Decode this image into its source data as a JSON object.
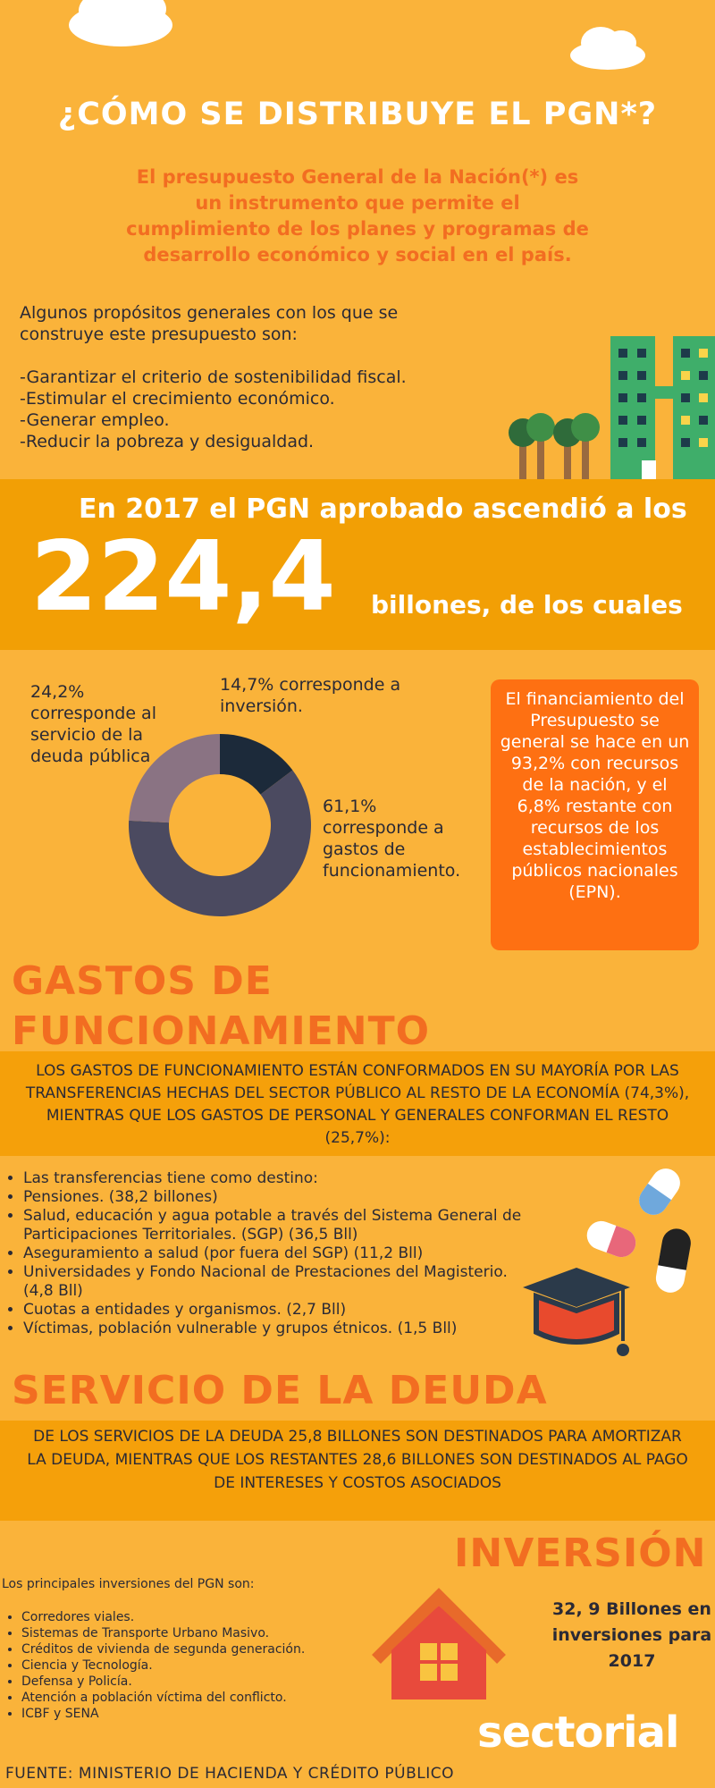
{
  "header": {
    "title": "¿CÓMO SE DISTRIBUYE EL PGN*?",
    "intro": "El presupuesto General de la Nación(*) es un instrumento que permite el cumplimiento de los planes y programas de desarrollo económico y social en el país.",
    "purposes_lead": "Algunos propósitos generales con los que se construye este presupuesto son:",
    "purposes": [
      "-Garantizar el criterio de sostenibilidad fiscal.",
      "-Estimular el crecimiento económico.",
      "-Generar empleo.",
      "-Reducir la pobreza y desigualdad."
    ]
  },
  "highlight": {
    "line": "En 2017 el PGN aprobado ascendió a los",
    "amount": "224,4",
    "unit": "billones, de los cuales"
  },
  "chart_data": {
    "type": "pie",
    "categories": [
      "corresponde a inversión.",
      "corresponde a gastos de funcionamiento.",
      "corresponde al servicio de la deuda pública"
    ],
    "values": [
      14.7,
      61.1,
      24.2
    ],
    "value_labels": [
      "14,7%",
      "61,1%",
      "24,2%"
    ],
    "colors": [
      "#1c2a3a",
      "#4b4a60",
      "#8a7383"
    ]
  },
  "financing": "El financiamiento del Presupuesto se general se hace en un 93,2% con recursos de la nación, y el 6,8% restante con recursos de los establecimientos públicos nacionales (EPN).",
  "funcionamiento": {
    "title": "GASTOS DE FUNCIONAMIENTO",
    "summary": "LOS GASTOS DE FUNCIONAMIENTO ESTÁN CONFORMADOS EN SU MAYORÍA POR LAS TRANSFERENCIAS HECHAS DEL SECTOR PÚBLICO AL RESTO DE LA ECONOMÍA (74,3%), MIENTRAS QUE LOS GASTOS DE PERSONAL Y GENERALES CONFORMAN EL RESTO (25,7%):",
    "items": [
      "Las transferencias tiene como destino:",
      "Pensiones. (38,2 billones)",
      "Salud, educación y agua potable a través del Sistema General de Participaciones Territoriales. (SGP) (36,5 Bll)",
      "Aseguramiento a salud (por fuera del SGP) (11,2 Bll)",
      "Universidades y Fondo Nacional de Prestaciones del Magisterio. (4,8 Bll)",
      "Cuotas a entidades y organismos. (2,7 Bll)",
      "Víctimas, población vulnerable y grupos étnicos. (1,5 Bll)"
    ]
  },
  "deuda": {
    "title": "SERVICIO DE LA DEUDA",
    "summary": "DE LOS SERVICIOS DE LA DEUDA 25,8 BILLONES SON DESTINADOS PARA AMORTIZAR LA DEUDA, MIENTRAS QUE LOS RESTANTES 28,6 BILLONES SON DESTINADOS AL PAGO DE INTERESES Y COSTOS ASOCIADOS"
  },
  "inversion": {
    "title": "INVERSIÓN",
    "lead": "Los principales inversiones del PGN son:",
    "items": [
      "Corredores viales.",
      "Sistemas de Transporte Urbano Masivo.",
      "Créditos de vivienda de segunda generación.",
      "Ciencia y Tecnología.",
      "Defensa y Policía.",
      "Atención a población víctima del conflicto.",
      "ICBF y SENA"
    ],
    "total": "32, 9 Billones en inversiones para 2017"
  },
  "logo": "sectorial",
  "source": "FUENTE: MINISTERIO DE HACIENDA Y CRÉDITO PÚBLICO"
}
